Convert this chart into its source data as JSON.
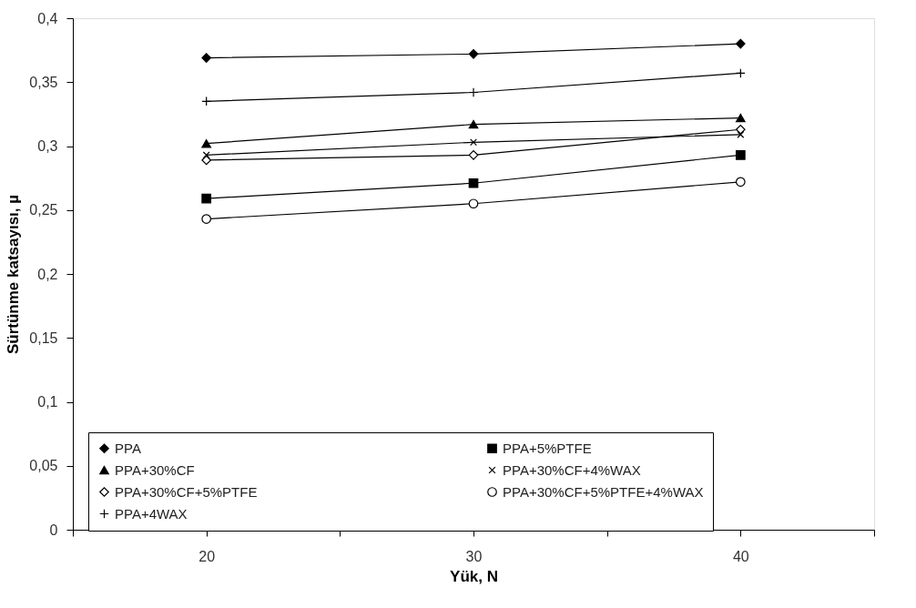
{
  "chart_data": {
    "type": "line",
    "xlabel": "Yük, N",
    "ylabel": "Sürtünme katsayısı, µ",
    "x": [
      20,
      30,
      40
    ],
    "xlim": [
      15,
      45
    ],
    "xticks": [
      {
        "value": 15,
        "label": null
      },
      20,
      {
        "value": 25,
        "label": null
      },
      30,
      {
        "value": 35,
        "label": null
      },
      40,
      {
        "value": 45,
        "label": null
      }
    ],
    "ylim": [
      0,
      0.4
    ],
    "yticks": [
      0,
      {
        "value": 0.05,
        "label": "0,05"
      },
      {
        "value": 0.1,
        "label": "0,1"
      },
      {
        "value": 0.15,
        "label": "0,15"
      },
      {
        "value": 0.2,
        "label": "0,2"
      },
      {
        "value": 0.25,
        "label": "0,25"
      },
      {
        "value": 0.3,
        "label": "0,3"
      },
      {
        "value": 0.35,
        "label": "0,35"
      },
      {
        "value": 0.4,
        "label": "0,4"
      }
    ],
    "grid": false,
    "legend": "bottom",
    "line_style": "solid",
    "series": [
      {
        "name": "PPA",
        "color": "#000000",
        "marker": "diamond",
        "values": [
          0.369,
          0.372,
          0.38
        ]
      },
      {
        "name": "PPA+5%PTFE",
        "color": "#000000",
        "marker": "square",
        "values": [
          0.259,
          0.271,
          0.293
        ]
      },
      {
        "name": "PPA+30%CF",
        "color": "#000000",
        "marker": "triangle",
        "values": [
          0.302,
          0.317,
          0.322
        ]
      },
      {
        "name": "PPA+30%CF+4%WAX",
        "color": "#000000",
        "marker": "cross",
        "values": [
          0.293,
          0.303,
          0.309
        ]
      },
      {
        "name": "PPA+30%CF+5%PTFE",
        "color": "#000000",
        "marker": "diamond",
        "values": [
          0.289,
          0.293,
          0.313
        ]
      },
      {
        "name": "PPA+30%CF+5%PTFE+4%WAX",
        "color": "#000000",
        "marker": "circle",
        "values": [
          0.243,
          0.255,
          0.272
        ]
      },
      {
        "name": "PPA+4WAX",
        "color": "#000000",
        "marker": "cross",
        "values": [
          0.335,
          0.342,
          0.357
        ]
      }
    ]
  }
}
